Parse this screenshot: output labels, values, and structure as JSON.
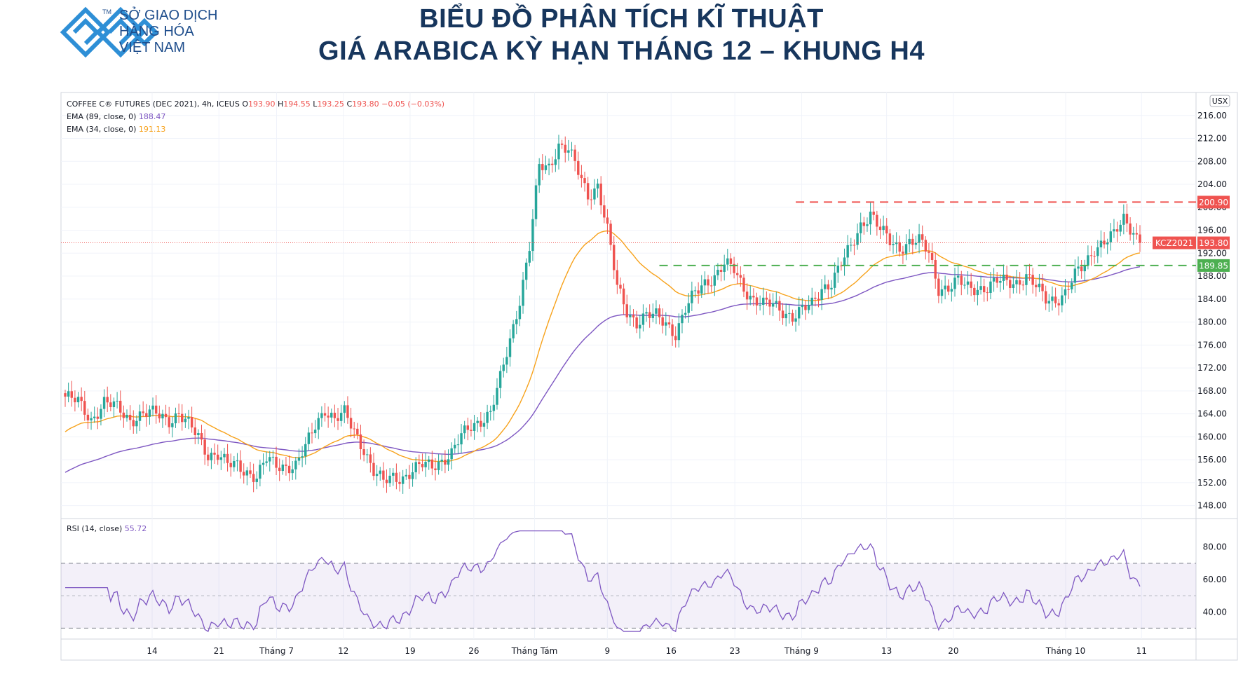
{
  "header": {
    "logo_line1": "SỞ GIAO DỊCH",
    "logo_line2": "HÀNG HÓA",
    "logo_line3": "VIỆT NAM",
    "logo_tm": "TM",
    "title_line1": "BIỂU ĐỒ PHÂN TÍCH KĨ THUẬT",
    "title_line2": "GIÁ ARABICA KỲ HẠN THÁNG 12 – KHUNG H4"
  },
  "legend": {
    "symbol": "COFFEE C® FUTURES (DEC 2021), 4h, ICEUS",
    "o_label": "O",
    "o_val": "193.90",
    "h_label": "H",
    "h_val": "194.55",
    "l_label": "L",
    "l_val": "193.25",
    "c_label": "C",
    "c_val": "193.80",
    "chg": "−0.05 (−0.03%)",
    "ema89_label": "EMA (89, close, 0)",
    "ema89_val": "188.47",
    "ema34_label": "EMA (34, close, 0)",
    "ema34_val": "191.13",
    "rsi_label": "RSI (14, close)",
    "rsi_val": "55.72"
  },
  "colors": {
    "up": "#26a69a",
    "down": "#ef5350",
    "ema89": "#7e57c2",
    "ema34": "#f7a21b",
    "rsi": "#7e57c2",
    "resistance": "#ef5350",
    "support": "#4caf50",
    "title": "#17365d"
  },
  "chart_data": [
    {
      "type": "candlestick",
      "currency_badge": "USX",
      "ylim": [
        146,
        220
      ],
      "yticks": [
        "216.00",
        "212.00",
        "208.00",
        "204.00",
        "200.00",
        "196.00",
        "192.00",
        "188.00",
        "184.00",
        "180.00",
        "176.00",
        "172.00",
        "168.00",
        "164.00",
        "160.00",
        "156.00",
        "152.00",
        "148.00"
      ],
      "x_labels": [
        "14",
        "21",
        "Tháng 7",
        "12",
        "19",
        "26",
        "Tháng Tám",
        "9",
        "16",
        "23",
        "Tháng 9",
        "13",
        "20",
        "Tháng 10",
        "11"
      ],
      "price_labels": {
        "resistance": "200.90",
        "last_symbol": "KCZ2021",
        "last": "193.80",
        "support": "189.85"
      },
      "close_path": [
        [
          0,
          167
        ],
        [
          4,
          166
        ],
        [
          8,
          163
        ],
        [
          12,
          166
        ],
        [
          16,
          165
        ],
        [
          20,
          163
        ],
        [
          24,
          164
        ],
        [
          28,
          164
        ],
        [
          32,
          163
        ],
        [
          35,
          164
        ],
        [
          38,
          162
        ],
        [
          41,
          160
        ],
        [
          44,
          157
        ],
        [
          47,
          157
        ],
        [
          50,
          155
        ],
        [
          53,
          155
        ],
        [
          56,
          154
        ],
        [
          59,
          153
        ],
        [
          62,
          156
        ],
        [
          65,
          155
        ],
        [
          68,
          155
        ],
        [
          71,
          155
        ],
        [
          74,
          158
        ],
        [
          77,
          162
        ],
        [
          80,
          165
        ],
        [
          83,
          163
        ],
        [
          86,
          164
        ],
        [
          89,
          161
        ],
        [
          92,
          158
        ],
        [
          95,
          154
        ],
        [
          98,
          152
        ],
        [
          101,
          153
        ],
        [
          104,
          153
        ],
        [
          107,
          154
        ],
        [
          110,
          155
        ],
        [
          113,
          155
        ],
        [
          116,
          156
        ],
        [
          119,
          157
        ],
        [
          122,
          160
        ],
        [
          125,
          162
        ],
        [
          128,
          163
        ],
        [
          131,
          164
        ],
        [
          134,
          170
        ],
        [
          137,
          177
        ],
        [
          140,
          184
        ],
        [
          143,
          193
        ],
        [
          146,
          207
        ],
        [
          149,
          207
        ],
        [
          152,
          211
        ],
        [
          155,
          210
        ],
        [
          158,
          206
        ],
        [
          161,
          202
        ],
        [
          164,
          204
        ],
        [
          167,
          196
        ],
        [
          170,
          186
        ],
        [
          173,
          182
        ],
        [
          176,
          180
        ],
        [
          179,
          181
        ],
        [
          182,
          181
        ],
        [
          185,
          180
        ],
        [
          188,
          178
        ],
        [
          191,
          182
        ],
        [
          194,
          185
        ],
        [
          197,
          187
        ],
        [
          200,
          188
        ],
        [
          203,
          190
        ],
        [
          206,
          189
        ],
        [
          209,
          186
        ],
        [
          212,
          184
        ],
        [
          215,
          183
        ],
        [
          218,
          183
        ],
        [
          221,
          182
        ],
        [
          224,
          181
        ],
        [
          227,
          182
        ],
        [
          230,
          183
        ],
        [
          233,
          186
        ],
        [
          236,
          187
        ],
        [
          239,
          190
        ],
        [
          242,
          193
        ],
        [
          245,
          197
        ],
        [
          248,
          199
        ],
        [
          251,
          196
        ],
        [
          254,
          194
        ],
        [
          257,
          193
        ],
        [
          260,
          194
        ],
        [
          263,
          194
        ],
        [
          266,
          192
        ],
        [
          269,
          186
        ],
        [
          272,
          186
        ],
        [
          275,
          187
        ],
        [
          278,
          186
        ],
        [
          281,
          186
        ],
        [
          284,
          186
        ],
        [
          287,
          187
        ],
        [
          290,
          187
        ],
        [
          293,
          187
        ],
        [
          296,
          188
        ],
        [
          299,
          186
        ],
        [
          302,
          184
        ],
        [
          305,
          184
        ],
        [
          308,
          185
        ],
        [
          311,
          188
        ],
        [
          314,
          190
        ],
        [
          317,
          193
        ],
        [
          320,
          194
        ],
        [
          323,
          195
        ],
        [
          326,
          198
        ],
        [
          329,
          196
        ],
        [
          331,
          193.8
        ]
      ],
      "series": [
        {
          "name": "EMA (89, close, 0)",
          "last": 188.47
        },
        {
          "name": "EMA (34, close, 0)",
          "last": 191.13
        }
      ]
    },
    {
      "type": "line",
      "name": "RSI (14, close)",
      "ylim": [
        25,
        95
      ],
      "yticks": [
        "80.00",
        "60.00",
        "40.00"
      ],
      "band": [
        30,
        70
      ],
      "midline": 50
    }
  ]
}
